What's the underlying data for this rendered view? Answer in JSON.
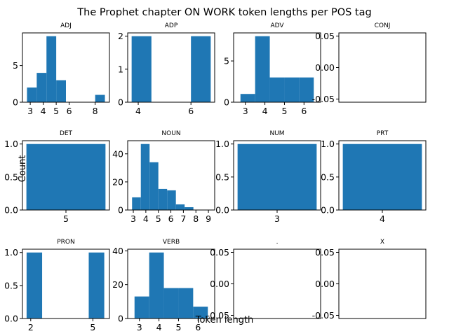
{
  "figure": {
    "title": "The Prophet chapter ON WORK token lengths per POS tag",
    "xlabel": "Token length",
    "ylabel": "Count"
  },
  "colors": {
    "bar": "#1f77b4",
    "axis": "#000000",
    "background": "#ffffff"
  },
  "chart_data": [
    {
      "type": "bar",
      "title": "ADJ",
      "bins": [
        [
          2.75,
          3.5
        ],
        [
          3.5,
          4.25
        ],
        [
          4.25,
          5.0
        ],
        [
          5.0,
          5.75
        ],
        [
          5.75,
          6.5
        ],
        [
          6.5,
          7.25
        ],
        [
          7.25,
          8.0
        ],
        [
          8.0,
          8.75
        ]
      ],
      "values": [
        2,
        4,
        9,
        3,
        0,
        0,
        0,
        1
      ],
      "xlim": [
        2.4,
        9.1
      ],
      "ylim": [
        0,
        9.45
      ],
      "xticks": [
        3,
        4,
        5,
        6,
        8
      ],
      "yticks": [
        0,
        5
      ]
    },
    {
      "type": "bar",
      "title": "ADP",
      "bins": [
        [
          3.75,
          4.5
        ],
        [
          4.5,
          5.25
        ],
        [
          5.25,
          6.0
        ],
        [
          6.0,
          6.75
        ]
      ],
      "values": [
        2,
        0,
        0,
        2
      ],
      "xlim": [
        3.6,
        6.9
      ],
      "ylim": [
        0,
        2.1
      ],
      "xticks": [
        4,
        6
      ],
      "yticks": [
        0,
        1,
        2
      ]
    },
    {
      "type": "bar",
      "title": "ADV",
      "bins": [
        [
          2.75,
          3.5
        ],
        [
          3.5,
          4.25
        ],
        [
          4.25,
          5.0
        ],
        [
          5.0,
          5.75
        ],
        [
          5.75,
          6.5
        ]
      ],
      "values": [
        1,
        8,
        3,
        3,
        3
      ],
      "xlim": [
        2.4,
        6.85
      ],
      "ylim": [
        0,
        8.4
      ],
      "xticks": [
        3,
        4,
        5,
        6
      ],
      "yticks": [
        0,
        5
      ]
    },
    {
      "type": "bar",
      "title": "CONJ",
      "bins": [],
      "values": [],
      "xlim": [
        0,
        1
      ],
      "ylim": [
        -0.055,
        0.055
      ],
      "xticks": [],
      "yticks": [
        "0.05",
        "0.00",
        "-0.05"
      ],
      "ytick_values": [
        0.05,
        0.0,
        -0.05
      ]
    },
    {
      "type": "bar",
      "title": "DET",
      "bins": [
        [
          4.5,
          5.5
        ]
      ],
      "values": [
        1
      ],
      "xlim": [
        4.45,
        5.55
      ],
      "ylim": [
        0,
        1.05
      ],
      "xticks": [
        5
      ],
      "yticks": [
        "0.0",
        "0.5",
        "1.0"
      ],
      "ytick_values": [
        0,
        0.5,
        1.0
      ]
    },
    {
      "type": "bar",
      "title": "NOUN",
      "bins": [
        [
          2.9,
          3.6
        ],
        [
          3.6,
          4.3
        ],
        [
          4.3,
          5.0
        ],
        [
          5.0,
          5.7
        ],
        [
          5.7,
          6.4
        ],
        [
          6.4,
          7.1
        ],
        [
          7.1,
          7.8
        ],
        [
          7.8,
          8.5
        ],
        [
          8.5,
          9.2
        ]
      ],
      "values": [
        9,
        47,
        34,
        15,
        14,
        4,
        2,
        0,
        0
      ],
      "xlim": [
        2.55,
        9.5
      ],
      "ylim": [
        0,
        49.35
      ],
      "xticks": [
        3,
        4,
        5,
        6,
        7,
        8,
        9
      ],
      "yticks": [
        0,
        20,
        40
      ]
    },
    {
      "type": "bar",
      "title": "NUM",
      "bins": [
        [
          2.5,
          3.5
        ]
      ],
      "values": [
        1
      ],
      "xlim": [
        2.45,
        3.55
      ],
      "ylim": [
        0,
        1.05
      ],
      "xticks": [
        3
      ],
      "yticks": [
        "0.0",
        "0.5",
        "1.0"
      ],
      "ytick_values": [
        0,
        0.5,
        1.0
      ]
    },
    {
      "type": "bar",
      "title": "PRT",
      "bins": [
        [
          3.5,
          4.5
        ]
      ],
      "values": [
        1
      ],
      "xlim": [
        3.45,
        4.55
      ],
      "ylim": [
        0,
        1.05
      ],
      "xticks": [
        4
      ],
      "yticks": [
        "0.0",
        "0.5",
        "1.0"
      ],
      "ytick_values": [
        0,
        0.5,
        1.0
      ]
    },
    {
      "type": "bar",
      "title": "PRON",
      "bins": [
        [
          1.8,
          2.55
        ],
        [
          2.55,
          3.3
        ],
        [
          3.3,
          4.05
        ],
        [
          4.05,
          4.8
        ],
        [
          4.8,
          5.55
        ]
      ],
      "values": [
        1,
        0,
        0,
        0,
        1
      ],
      "xlim": [
        1.6,
        5.8
      ],
      "ylim": [
        0,
        1.05
      ],
      "xticks": [
        2,
        5
      ],
      "yticks": [
        "0.0",
        "0.5",
        "1.0"
      ],
      "ytick_values": [
        0,
        0.5,
        1.0
      ]
    },
    {
      "type": "bar",
      "title": "VERB",
      "bins": [
        [
          2.75,
          3.5
        ],
        [
          3.5,
          4.25
        ],
        [
          4.25,
          5.0
        ],
        [
          5.0,
          5.75
        ],
        [
          5.75,
          6.5
        ]
      ],
      "values": [
        13,
        39,
        18,
        18,
        7
      ],
      "xlim": [
        2.4,
        6.85
      ],
      "ylim": [
        0,
        40.95
      ],
      "xticks": [
        3,
        4,
        5,
        6
      ],
      "yticks": [
        0,
        20,
        40
      ]
    },
    {
      "type": "bar",
      "title": ".",
      "bins": [],
      "values": [],
      "xlim": [
        0,
        1
      ],
      "ylim": [
        -0.055,
        0.055
      ],
      "xticks": [],
      "yticks": [
        "0.05",
        "0.00",
        "-0.05"
      ],
      "ytick_values": [
        0.05,
        0.0,
        -0.05
      ]
    },
    {
      "type": "bar",
      "title": "X",
      "bins": [],
      "values": [],
      "xlim": [
        0,
        1
      ],
      "ylim": [
        -0.055,
        0.055
      ],
      "xticks": [],
      "yticks": [
        "0.05",
        "0.00",
        "-0.05"
      ],
      "ytick_values": [
        0.05,
        0.0,
        -0.05
      ]
    }
  ]
}
